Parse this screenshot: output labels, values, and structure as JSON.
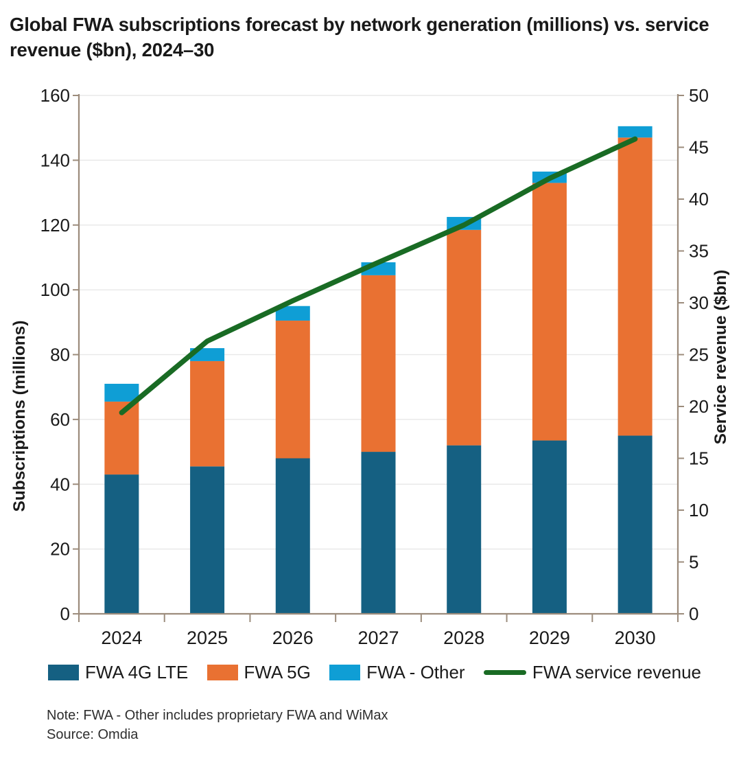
{
  "title": "Global FWA subscriptions forecast by network generation (millions) vs. service revenue ($bn), 2024–30",
  "chart_data": {
    "type": "bar",
    "subtype": "stacked-column-with-line-overlay",
    "categories": [
      "2024",
      "2025",
      "2026",
      "2027",
      "2028",
      "2029",
      "2030"
    ],
    "bar_series": [
      {
        "name": "FWA 4G LTE",
        "color": "#156082",
        "axis": "left",
        "values": [
          43,
          45.5,
          48,
          50,
          52,
          53.5,
          55
        ]
      },
      {
        "name": "FWA 5G",
        "color": "#E97132",
        "axis": "left",
        "values": [
          22.5,
          32.5,
          42.5,
          54.5,
          66.5,
          79.5,
          92
        ]
      },
      {
        "name": "FWA - Other",
        "color": "#0F9ED5",
        "axis": "left",
        "values": [
          5.5,
          4,
          4.5,
          4,
          4,
          3.5,
          3.5
        ]
      }
    ],
    "bar_totals": [
      71,
      82,
      95,
      108.5,
      122.5,
      136.5,
      150.5
    ],
    "line_series": {
      "name": "FWA service revenue",
      "color": "#196B24",
      "axis": "right",
      "values": [
        19.4,
        26.3,
        30.2,
        33.9,
        37.5,
        42,
        45.8
      ]
    },
    "left_axis": {
      "label": "Subscriptions (millions)",
      "min": 0,
      "max": 160,
      "step": 20,
      "ticks": [
        0,
        20,
        40,
        60,
        80,
        100,
        120,
        140,
        160
      ]
    },
    "right_axis": {
      "label": "Service revenue ($bn)",
      "min": 0,
      "max": 50,
      "step": 5,
      "ticks": [
        0,
        5,
        10,
        15,
        20,
        25,
        30,
        35,
        40,
        45,
        50
      ]
    },
    "grid": "horizontal-only",
    "legend_position": "bottom",
    "grid_color": "#E9E9E9",
    "axis_color": "#9C8C7C",
    "text_color": "#1A1A1A"
  },
  "footnotes": {
    "note": "Note: FWA - Other includes proprietary FWA and WiMax",
    "source": "Source: Omdia"
  }
}
